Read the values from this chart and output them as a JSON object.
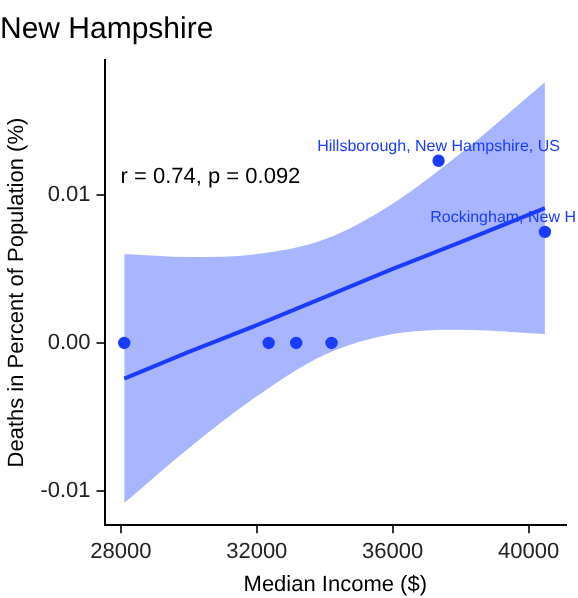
{
  "chart_data": {
    "type": "scatter",
    "title": "New Hampshire",
    "xlabel": "Median Income ($)",
    "ylabel": "Deaths in Percent of Population (%)",
    "xlim": [
      27520,
      41100
    ],
    "xticks": [
      28000,
      32000,
      36000,
      40000
    ],
    "ylim": [
      -0.0123,
      0.0191
    ],
    "yticks": [
      -0.01,
      {
        "value": 0,
        "label": "0.00"
      },
      0.01
    ],
    "grid": false,
    "legend": false,
    "series": [
      {
        "marker": "circle",
        "color": "#1a3cff",
        "x": [
          28100,
          32350,
          33160,
          34200,
          37350,
          40480
        ],
        "values": [
          0,
          0,
          0,
          0,
          0.0123,
          0.0075
        ]
      },
      {
        "type": "line",
        "marker": "none",
        "color": "#1a3cff",
        "line_style": "solid",
        "x": [
          28100,
          30000,
          32000,
          34000,
          36000,
          38000,
          40480
        ],
        "values": [
          -0.0024,
          -0.0006,
          0.0012,
          0.0031,
          0.005,
          0.0068,
          0.0091
        ],
        "lower": [
          -0.0108,
          -0.0071,
          -0.0036,
          -0.0008,
          0.0006,
          0.0009,
          0.0006
        ],
        "upper": [
          0.006,
          0.0058,
          0.006,
          0.007,
          0.0094,
          0.0128,
          0.0176
        ]
      }
    ],
    "annotations": [
      "r = 0.74, p = 0.092",
      {
        "text": "Hillsborough, New Hampshire, US",
        "x": 37350,
        "y": 0.0123
      },
      {
        "text": "Rockingham, New H",
        "x": 40480,
        "y": 0.0075
      }
    ]
  }
}
